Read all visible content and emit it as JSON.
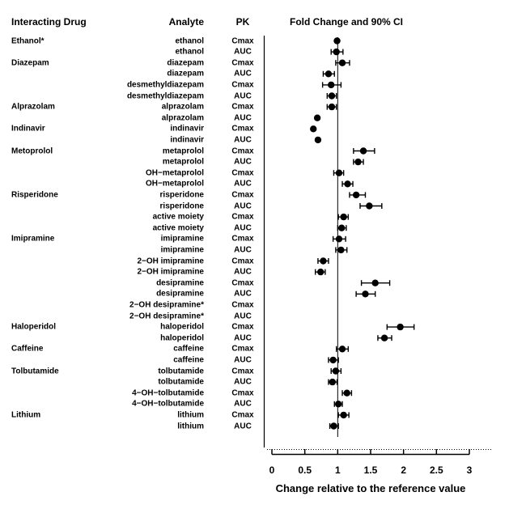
{
  "header": {
    "interacting_drug": "Interacting Drug",
    "analyte": "Analyte",
    "pk": "PK",
    "fold_change": "Fold Change and 90% CI"
  },
  "colors": {
    "foreground": "#000000",
    "background": "#ffffff"
  },
  "chart_data": {
    "type": "scatter",
    "subtype": "forest-plot",
    "title": "Fold Change and 90% CI",
    "xlabel": "Change relative to the reference value",
    "xlim": [
      0,
      3
    ],
    "x_ticks": [
      0,
      0.5,
      1,
      1.5,
      2,
      2.5,
      3
    ],
    "x_tick_labels": [
      "0",
      "0.5",
      "1",
      "1.5",
      "2",
      "2.5",
      "3"
    ],
    "reference_line_x": 1,
    "grid": false,
    "legend": "none",
    "rows": [
      {
        "drug": "Ethanol*",
        "analyte": "ethanol",
        "pk": "Cmax",
        "value": 0.99,
        "lo": null,
        "hi": null
      },
      {
        "drug": "",
        "analyte": "ethanol",
        "pk": "AUC",
        "value": 0.98,
        "lo": 0.9,
        "hi": 1.08
      },
      {
        "drug": "Diazepam",
        "analyte": "diazepam",
        "pk": "Cmax",
        "value": 1.07,
        "lo": 0.97,
        "hi": 1.18
      },
      {
        "drug": "",
        "analyte": "diazepam",
        "pk": "AUC",
        "value": 0.86,
        "lo": 0.78,
        "hi": 0.95
      },
      {
        "drug": "",
        "analyte": "desmethyldiazepam",
        "pk": "Cmax",
        "value": 0.9,
        "lo": 0.77,
        "hi": 1.05
      },
      {
        "drug": "",
        "analyte": "desmethyldiazepam",
        "pk": "AUC",
        "value": 0.91,
        "lo": 0.84,
        "hi": 0.98
      },
      {
        "drug": "Alprazolam",
        "analyte": "alprazolam",
        "pk": "Cmax",
        "value": 0.91,
        "lo": 0.84,
        "hi": 0.98
      },
      {
        "drug": "",
        "analyte": "alprazolam",
        "pk": "AUC",
        "value": 0.69,
        "lo": null,
        "hi": null
      },
      {
        "drug": "Indinavir",
        "analyte": "indinavir",
        "pk": "Cmax",
        "value": 0.63,
        "lo": null,
        "hi": null
      },
      {
        "drug": "",
        "analyte": "indinavir",
        "pk": "AUC",
        "value": 0.7,
        "lo": null,
        "hi": null
      },
      {
        "drug": "Metoprolol",
        "analyte": "metaprolol",
        "pk": "Cmax",
        "value": 1.39,
        "lo": 1.24,
        "hi": 1.56
      },
      {
        "drug": "",
        "analyte": "metaprolol",
        "pk": "AUC",
        "value": 1.31,
        "lo": 1.24,
        "hi": 1.39
      },
      {
        "drug": "",
        "analyte": "OH−metaprolol",
        "pk": "Cmax",
        "value": 1.02,
        "lo": 0.94,
        "hi": 1.09
      },
      {
        "drug": "",
        "analyte": "OH−metaprolol",
        "pk": "AUC",
        "value": 1.15,
        "lo": 1.07,
        "hi": 1.23
      },
      {
        "drug": "Risperidone",
        "analyte": "risperidone",
        "pk": "Cmax",
        "value": 1.28,
        "lo": 1.18,
        "hi": 1.42
      },
      {
        "drug": "",
        "analyte": "risperidone",
        "pk": "AUC",
        "value": 1.48,
        "lo": 1.34,
        "hi": 1.67
      },
      {
        "drug": "",
        "analyte": "active moiety",
        "pk": "Cmax",
        "value": 1.09,
        "lo": 1.01,
        "hi": 1.16
      },
      {
        "drug": "",
        "analyte": "active moiety",
        "pk": "AUC",
        "value": 1.06,
        "lo": 1.0,
        "hi": 1.13
      },
      {
        "drug": "Imipramine",
        "analyte": "imipramine",
        "pk": "Cmax",
        "value": 1.02,
        "lo": 0.93,
        "hi": 1.12
      },
      {
        "drug": "",
        "analyte": "imipramine",
        "pk": "AUC",
        "value": 1.05,
        "lo": 0.97,
        "hi": 1.14
      },
      {
        "drug": "",
        "analyte": "2−OH imipramine",
        "pk": "Cmax",
        "value": 0.78,
        "lo": 0.7,
        "hi": 0.86
      },
      {
        "drug": "",
        "analyte": "2−OH imipramine",
        "pk": "AUC",
        "value": 0.74,
        "lo": 0.66,
        "hi": 0.81
      },
      {
        "drug": "",
        "analyte": "desipramine",
        "pk": "Cmax",
        "value": 1.57,
        "lo": 1.36,
        "hi": 1.79
      },
      {
        "drug": "",
        "analyte": "desipramine",
        "pk": "AUC",
        "value": 1.42,
        "lo": 1.28,
        "hi": 1.57
      },
      {
        "drug": "",
        "analyte": "2−OH desipramine*",
        "pk": "Cmax",
        "value": null,
        "lo": null,
        "hi": null
      },
      {
        "drug": "",
        "analyte": "2−OH desipramine*",
        "pk": "AUC",
        "value": null,
        "lo": null,
        "hi": null
      },
      {
        "drug": "Haloperidol",
        "analyte": "haloperidol",
        "pk": "Cmax",
        "value": 1.95,
        "lo": 1.75,
        "hi": 2.16
      },
      {
        "drug": "",
        "analyte": "haloperidol",
        "pk": "AUC",
        "value": 1.71,
        "lo": 1.61,
        "hi": 1.82
      },
      {
        "drug": "Caffeine",
        "analyte": "caffeine",
        "pk": "Cmax",
        "value": 1.07,
        "lo": 0.98,
        "hi": 1.16
      },
      {
        "drug": "",
        "analyte": "caffeine",
        "pk": "AUC",
        "value": 0.93,
        "lo": 0.86,
        "hi": 1.01
      },
      {
        "drug": "Tolbutamide",
        "analyte": "tolbutamide",
        "pk": "Cmax",
        "value": 0.97,
        "lo": 0.9,
        "hi": 1.05
      },
      {
        "drug": "",
        "analyte": "tolbutamide",
        "pk": "AUC",
        "value": 0.92,
        "lo": 0.86,
        "hi": 0.99
      },
      {
        "drug": "",
        "analyte": "4−OH−tolbutamide",
        "pk": "Cmax",
        "value": 1.14,
        "lo": 1.07,
        "hi": 1.21
      },
      {
        "drug": "",
        "analyte": "4−OH−tolbutamide",
        "pk": "AUC",
        "value": 1.01,
        "lo": 0.95,
        "hi": 1.07
      },
      {
        "drug": "Lithium",
        "analyte": "lithium",
        "pk": "Cmax",
        "value": 1.09,
        "lo": 1.01,
        "hi": 1.17
      },
      {
        "drug": "",
        "analyte": "lithium",
        "pk": "AUC",
        "value": 0.94,
        "lo": 0.88,
        "hi": 1.01
      }
    ]
  }
}
